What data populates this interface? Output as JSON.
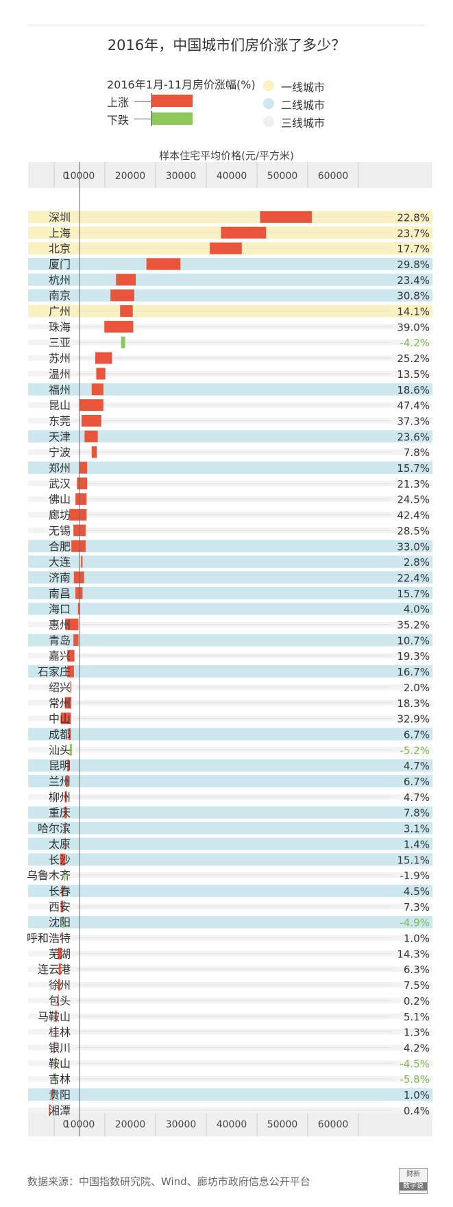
{
  "title": "2016年，中国城市们房价涨了多少？",
  "legend": {
    "title": "2016年1月-11月房价涨幅(%)",
    "up_label": "上涨",
    "down_label": "下跌",
    "tiers": [
      {
        "label": "一线城市",
        "color": "#faf1c3"
      },
      {
        "label": "二线城市",
        "color": "#cde7ef"
      },
      {
        "label": "三线城市",
        "color": "#efefef"
      }
    ]
  },
  "colors": {
    "up": "#e8553a",
    "down": "#8cc85a",
    "pos_text": "#333333",
    "neg_text": "#7cbc4d",
    "axis_band": "#efefef"
  },
  "source": "数据来源：中国指数研究院、Wind、廊坊市政府信息公开平台",
  "logo": {
    "top": "财新",
    "bottom": "数字说"
  },
  "chart_data": {
    "type": "bar",
    "subtype": "floating range bars (start price to end price)",
    "xlabel": "样本住宅平均价格(元/平方米)",
    "xticks": [
      0,
      10000,
      20000,
      30000,
      40000,
      50000,
      60000
    ],
    "xlim": [
      0,
      70000
    ],
    "reference_line": 10000,
    "cities": [
      {
        "name": "深圳",
        "tier": 1,
        "start": 45600,
        "end": 55800,
        "change": "22.8%"
      },
      {
        "name": "上海",
        "tier": 1,
        "start": 37900,
        "end": 46800,
        "change": "23.7%"
      },
      {
        "name": "北京",
        "tier": 1,
        "start": 35700,
        "end": 42000,
        "change": "17.7%"
      },
      {
        "name": "厦门",
        "tier": 2,
        "start": 23200,
        "end": 29900,
        "change": "29.8%"
      },
      {
        "name": "杭州",
        "tier": 2,
        "start": 17200,
        "end": 21100,
        "change": "23.4%"
      },
      {
        "name": "南京",
        "tier": 2,
        "start": 16100,
        "end": 20800,
        "change": "30.8%"
      },
      {
        "name": "广州",
        "tier": 1,
        "start": 18000,
        "end": 20500,
        "change": "14.1%"
      },
      {
        "name": "珠海",
        "tier": 3,
        "start": 14900,
        "end": 20600,
        "change": "39.0%"
      },
      {
        "name": "三亚",
        "tier": 3,
        "start": 19000,
        "end": 18200,
        "change": "-4.2%"
      },
      {
        "name": "苏州",
        "tier": 3,
        "start": 13100,
        "end": 16400,
        "change": "25.2%"
      },
      {
        "name": "温州",
        "tier": 3,
        "start": 13300,
        "end": 15100,
        "change": "13.5%"
      },
      {
        "name": "福州",
        "tier": 2,
        "start": 12400,
        "end": 14700,
        "change": "18.6%"
      },
      {
        "name": "昆山",
        "tier": 3,
        "start": 10000,
        "end": 14700,
        "change": "47.4%"
      },
      {
        "name": "东莞",
        "tier": 3,
        "start": 10400,
        "end": 14300,
        "change": "37.3%"
      },
      {
        "name": "天津",
        "tier": 2,
        "start": 11000,
        "end": 13600,
        "change": "23.6%"
      },
      {
        "name": "宁波",
        "tier": 3,
        "start": 12400,
        "end": 13400,
        "change": "7.8%"
      },
      {
        "name": "郑州",
        "tier": 2,
        "start": 9900,
        "end": 11500,
        "change": "15.7%"
      },
      {
        "name": "武汉",
        "tier": 3,
        "start": 9500,
        "end": 11500,
        "change": "21.3%"
      },
      {
        "name": "佛山",
        "tier": 3,
        "start": 9200,
        "end": 11400,
        "change": "24.5%"
      },
      {
        "name": "廊坊",
        "tier": 3,
        "start": 8000,
        "end": 11400,
        "change": "42.4%"
      },
      {
        "name": "无锡",
        "tier": 3,
        "start": 8800,
        "end": 11200,
        "change": "28.5%"
      },
      {
        "name": "合肥",
        "tier": 2,
        "start": 8400,
        "end": 11200,
        "change": "33.0%"
      },
      {
        "name": "大连",
        "tier": 2,
        "start": 10300,
        "end": 10600,
        "change": "2.8%"
      },
      {
        "name": "济南",
        "tier": 2,
        "start": 8900,
        "end": 10900,
        "change": "22.4%"
      },
      {
        "name": "南昌",
        "tier": 2,
        "start": 9200,
        "end": 10600,
        "change": "15.7%"
      },
      {
        "name": "海口",
        "tier": 2,
        "start": 9700,
        "end": 10100,
        "change": "4.0%"
      },
      {
        "name": "惠州",
        "tier": 3,
        "start": 7200,
        "end": 9800,
        "change": "35.2%"
      },
      {
        "name": "青岛",
        "tier": 2,
        "start": 8800,
        "end": 9800,
        "change": "10.7%"
      },
      {
        "name": "嘉兴",
        "tier": 3,
        "start": 7600,
        "end": 9000,
        "change": "19.3%"
      },
      {
        "name": "石家庄",
        "tier": 2,
        "start": 7600,
        "end": 8900,
        "change": "16.7%"
      },
      {
        "name": "绍兴",
        "tier": 3,
        "start": 8200,
        "end": 8400,
        "change": "2.0%"
      },
      {
        "name": "常州",
        "tier": 3,
        "start": 7100,
        "end": 8400,
        "change": "18.3%"
      },
      {
        "name": "中山",
        "tier": 3,
        "start": 6300,
        "end": 8300,
        "change": "32.9%"
      },
      {
        "name": "成都",
        "tier": 2,
        "start": 7800,
        "end": 8300,
        "change": "6.7%"
      },
      {
        "name": "汕头",
        "tier": 3,
        "start": 8500,
        "end": 8100,
        "change": "-5.2%"
      },
      {
        "name": "昆明",
        "tier": 2,
        "start": 7600,
        "end": 8000,
        "change": "4.7%"
      },
      {
        "name": "兰州",
        "tier": 2,
        "start": 7300,
        "end": 7800,
        "change": "6.7%"
      },
      {
        "name": "柳州",
        "tier": 3,
        "start": 7100,
        "end": 7500,
        "change": "4.7%"
      },
      {
        "name": "重庆",
        "tier": 2,
        "start": 7000,
        "end": 7500,
        "change": "7.8%"
      },
      {
        "name": "哈尔滨",
        "tier": 2,
        "start": 7100,
        "end": 7300,
        "change": "3.1%"
      },
      {
        "name": "太原",
        "tier": 2,
        "start": 7100,
        "end": 7200,
        "change": "1.4%"
      },
      {
        "name": "长沙",
        "tier": 2,
        "start": 6200,
        "end": 7200,
        "change": "15.1%"
      },
      {
        "name": "乌鲁木齐",
        "tier": 3,
        "start": 7100,
        "end": 7000,
        "change": "-1.9%"
      },
      {
        "name": "长春",
        "tier": 2,
        "start": 6500,
        "end": 6800,
        "change": "4.5%"
      },
      {
        "name": "西安",
        "tier": 3,
        "start": 6300,
        "end": 6800,
        "change": "7.3%"
      },
      {
        "name": "沈阳",
        "tier": 2,
        "start": 6900,
        "end": 6600,
        "change": "-4.9%"
      },
      {
        "name": "呼和浩特",
        "tier": 3,
        "start": 6500,
        "end": 6600,
        "change": "1.0%"
      },
      {
        "name": "芜湖",
        "tier": 3,
        "start": 5700,
        "end": 6500,
        "change": "14.3%"
      },
      {
        "name": "连云港",
        "tier": 3,
        "start": 5900,
        "end": 6300,
        "change": "6.3%"
      },
      {
        "name": "徐州",
        "tier": 3,
        "start": 5800,
        "end": 6200,
        "change": "7.5%"
      },
      {
        "name": "包头",
        "tier": 3,
        "start": 5700,
        "end": 5710,
        "change": "0.2%"
      },
      {
        "name": "马鞍山",
        "tier": 3,
        "start": 5200,
        "end": 5500,
        "change": "5.1%"
      },
      {
        "name": "桂林",
        "tier": 3,
        "start": 5200,
        "end": 5270,
        "change": "1.3%"
      },
      {
        "name": "银川",
        "tier": 3,
        "start": 4900,
        "end": 5100,
        "change": "4.2%"
      },
      {
        "name": "鞍山",
        "tier": 3,
        "start": 5400,
        "end": 5150,
        "change": "-4.5%"
      },
      {
        "name": "吉林",
        "tier": 3,
        "start": 5400,
        "end": 5100,
        "change": "-5.8%"
      },
      {
        "name": "贵阳",
        "tier": 2,
        "start": 4600,
        "end": 4650,
        "change": "1.0%"
      },
      {
        "name": "湘潭",
        "tier": 3,
        "start": 4000,
        "end": 4020,
        "change": "0.4%"
      }
    ]
  }
}
